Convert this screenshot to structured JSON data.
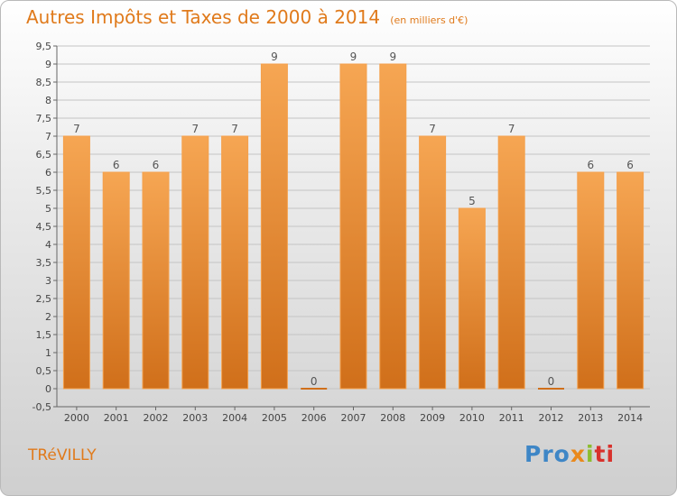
{
  "title": "Autres Impôts et Taxes de 2000 à 2014",
  "unit_note": "(en milliers d'€)",
  "commune": "TRéVILLY",
  "brand": [
    "Pro",
    "x",
    "i",
    "ti"
  ],
  "colors": {
    "bar_top": "#f6a653",
    "bar_bottom": "#d06f1a",
    "bar_edge": "#f4a04c",
    "accent": "#e07a1b"
  },
  "chart_data": {
    "type": "bar",
    "categories": [
      "2000",
      "2001",
      "2002",
      "2003",
      "2004",
      "2005",
      "2006",
      "2007",
      "2008",
      "2009",
      "2010",
      "2011",
      "2012",
      "2013",
      "2014"
    ],
    "values": [
      7,
      6,
      6,
      7,
      7,
      9,
      0,
      9,
      9,
      7,
      5,
      7,
      0,
      6,
      6
    ],
    "data_labels": [
      "7",
      "6",
      "6",
      "7",
      "7",
      "9",
      "0",
      "9",
      "9",
      "7",
      "5",
      "7",
      "0",
      "6",
      "6"
    ],
    "title": "Autres Impôts et Taxes de 2000 à 2014",
    "xlabel": "",
    "ylabel": "",
    "ylim": [
      -0.5,
      9.5
    ],
    "yticks": [
      -0.5,
      0,
      0.5,
      1,
      1.5,
      2,
      2.5,
      3,
      3.5,
      4,
      4.5,
      5,
      5.5,
      6,
      6.5,
      7,
      7.5,
      8,
      8.5,
      9,
      9.5
    ],
    "ytick_labels": [
      "-0,5",
      "0",
      "0,5",
      "1",
      "1,5",
      "2",
      "2,5",
      "3",
      "3,5",
      "4",
      "4,5",
      "5",
      "5,5",
      "6",
      "6,5",
      "7",
      "7,5",
      "8",
      "8,5",
      "9",
      "9,5"
    ],
    "grid": true,
    "legend": "none"
  }
}
